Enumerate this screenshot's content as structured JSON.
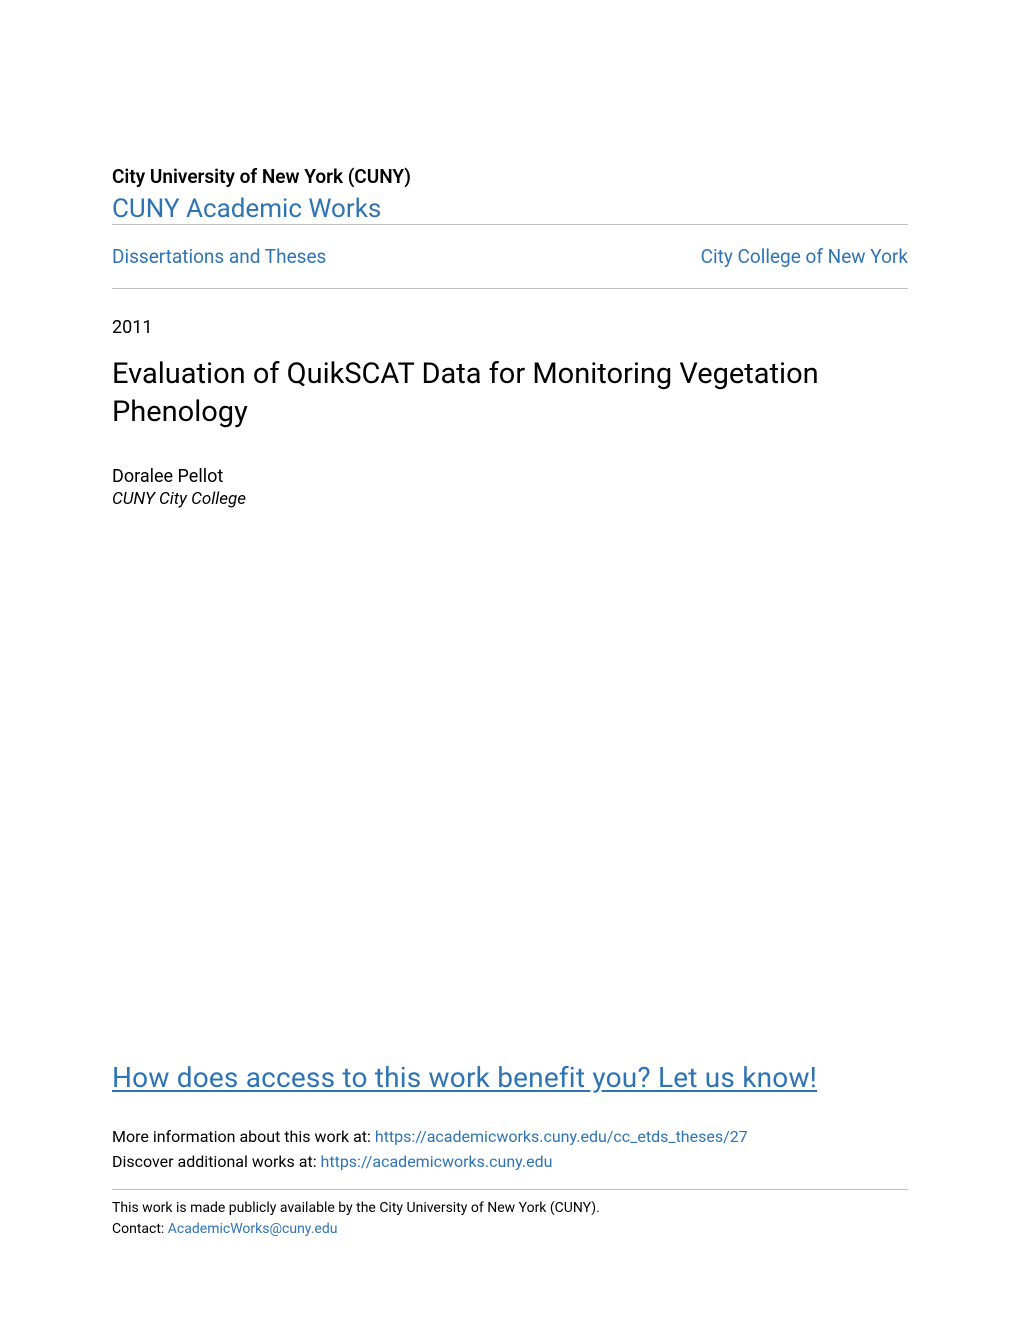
{
  "header": {
    "institution": "City University of New York (CUNY)",
    "repository": "CUNY Academic Works"
  },
  "nav": {
    "left_link": "Dissertations and Theses",
    "right_link": "City College of New York"
  },
  "meta": {
    "year": "2011",
    "title": "Evaluation of QuikSCAT Data for Monitoring Vegetation Phenology",
    "author": "Doralee Pellot",
    "affiliation": "CUNY City College"
  },
  "footer": {
    "benefit_cta": "How does access to this work benefit you? Let us know!",
    "more_info_label": "More information about this work at: ",
    "more_info_url": "https://academicworks.cuny.edu/cc_etds_theses/27",
    "discover_label": "Discover additional works at: ",
    "discover_url": "https://academicworks.cuny.edu",
    "rights": "This work is made publicly available by the City University of New York (CUNY).",
    "contact_label": "Contact: ",
    "contact_email": "AcademicWorks@cuny.edu"
  },
  "colors": {
    "link": "#2e74b5",
    "text": "#000000",
    "divider": "#bfbfbf",
    "background": "#ffffff"
  }
}
